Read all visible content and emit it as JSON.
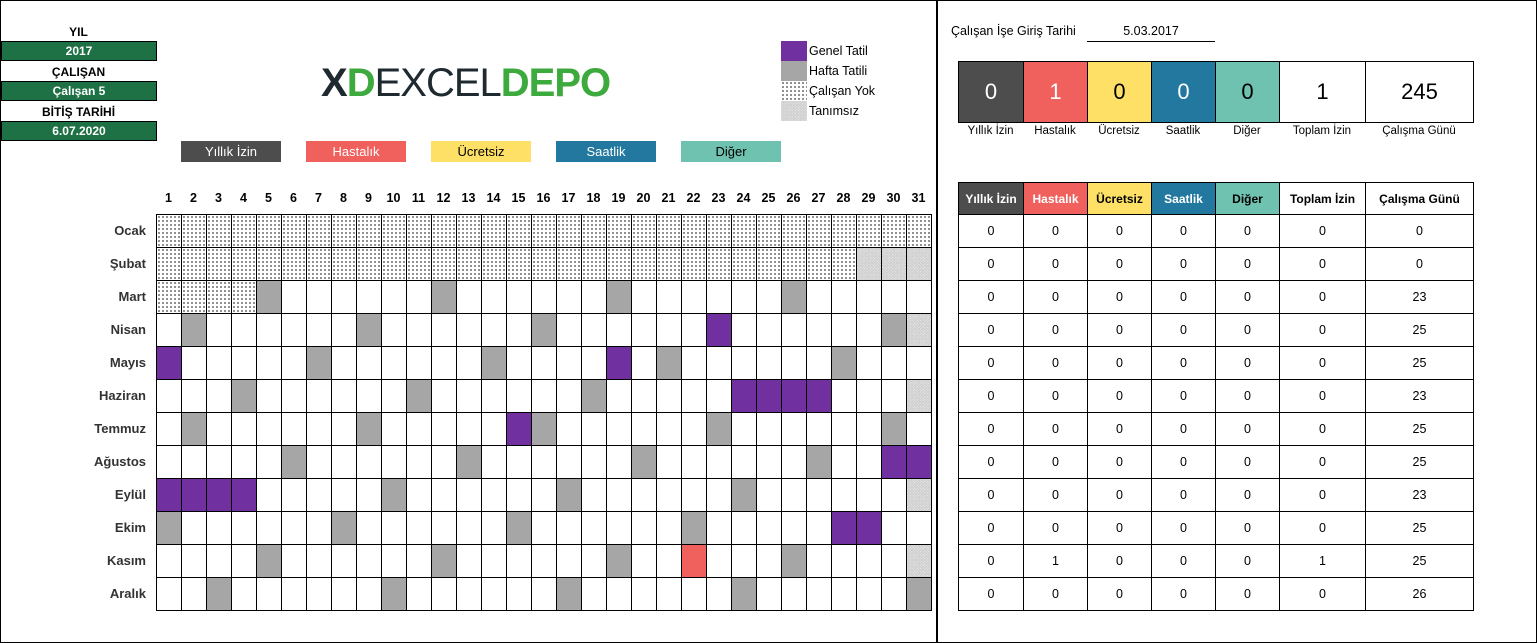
{
  "left_panel": {
    "year_label": "YIL",
    "year": "2017",
    "employee_label": "ÇALIŞAN",
    "employee": "Çalışan 5",
    "end_date_label": "BİTİŞ TARİHİ",
    "end_date": "6.07.2020"
  },
  "leave_buttons": [
    {
      "label": "Yıllık İzin",
      "color": "#4d4d4d",
      "text": "#fff"
    },
    {
      "label": "Hastalık",
      "color": "#f0605d",
      "text": "#fff"
    },
    {
      "label": "Ücretsiz",
      "color": "#ffe066",
      "text": "#000"
    },
    {
      "label": "Saatlik",
      "color": "#22789e",
      "text": "#fff"
    },
    {
      "label": "Diğer",
      "color": "#6fc1b0",
      "text": "#000"
    }
  ],
  "legend": [
    {
      "label": "Genel Tatil",
      "style": "c-h"
    },
    {
      "label": "Hafta Tatili",
      "style": "c-s"
    },
    {
      "label": "Çalışan Yok",
      "style": "dots"
    },
    {
      "label": "Tanımsız",
      "style": "hatch"
    }
  ],
  "calendar": {
    "cell_codes": {
      "w": "çalışma günü",
      "s": "Hafta Tatili",
      "h": "Genel Tatil",
      "n": "Çalışan Yok",
      "u": "Tanımsız",
      "r": "Hastalık"
    },
    "days": [
      "1",
      "2",
      "3",
      "4",
      "5",
      "6",
      "7",
      "8",
      "9",
      "10",
      "11",
      "12",
      "13",
      "14",
      "15",
      "16",
      "17",
      "18",
      "19",
      "20",
      "21",
      "22",
      "23",
      "24",
      "25",
      "26",
      "27",
      "28",
      "29",
      "30",
      "31"
    ],
    "months": [
      {
        "name": "Ocak",
        "cells": "nnnnnnnnnnnnnnnnnnnnnnnnnnnnnnn"
      },
      {
        "name": "Şubat",
        "cells": "nnnnnnnnnnnnnnnnnnnnnnnnnnnnuuu"
      },
      {
        "name": "Mart",
        "cells": "nnnnswwwwwwswwwwwwswwwwwwswwwww"
      },
      {
        "name": "Nisan",
        "cells": "wswwwwwwswwwwwwswwwwwwhwwwwwwsu"
      },
      {
        "name": "Mayıs",
        "cells": "hwwwwwswwwwwwswwwwhwswwwwwwswww"
      },
      {
        "name": "Haziran",
        "cells": "wwwswwwwwwswwwwwwswwwwwhhhhwwwu"
      },
      {
        "name": "Temmuz",
        "cells": "wswwwwwwswwwwwhswwwwwwswwwwwwsw"
      },
      {
        "name": "Ağustos",
        "cells": "wwwwwswwwwwwswwwwwwswwwwwwswwhh"
      },
      {
        "name": "Eylül",
        "cells": "hhhhwwwwwswwwwwwswwwwwwswwwwwwu"
      },
      {
        "name": "Ekim",
        "cells": "swwwwwwswwwwwwswwwwwwswwwwwhhww"
      },
      {
        "name": "Kasım",
        "cells": "wwwwswwwwwwswwwwwwswwrwwwswwwwu"
      },
      {
        "name": "Aralık",
        "cells": "wwswwwwwwswwwwwwswwwwwwswwwwwws"
      }
    ]
  },
  "hire_date": {
    "label": "Çalışan İşe Giriş Tarihi",
    "value": "5.03.2017"
  },
  "summary": [
    {
      "label": "Yıllık İzin",
      "value": "0",
      "color": "#4d4d4d",
      "text": "#fff"
    },
    {
      "label": "Hastalık",
      "value": "1",
      "color": "#f0605d",
      "text": "#fff"
    },
    {
      "label": "Ücretsiz",
      "value": "0",
      "color": "#ffe066",
      "text": "#000"
    },
    {
      "label": "Saatlik",
      "value": "0",
      "color": "#22789e",
      "text": "#fff"
    },
    {
      "label": "Diğer",
      "value": "0",
      "color": "#6fc1b0",
      "text": "#000"
    },
    {
      "label": "Toplam İzin",
      "value": "1",
      "color": "#ffffff",
      "text": "#000"
    },
    {
      "label": "Çalışma Günü",
      "value": "245",
      "color": "#ffffff",
      "text": "#000"
    }
  ],
  "monthly_table": {
    "headers": [
      "Yıllık İzin",
      "Hastalık",
      "Ücretsiz",
      "Saatlik",
      "Diğer",
      "Toplam İzin",
      "Çalışma Günü"
    ],
    "rows": [
      [
        "0",
        "0",
        "0",
        "0",
        "0",
        "0",
        "0"
      ],
      [
        "0",
        "0",
        "0",
        "0",
        "0",
        "0",
        "0"
      ],
      [
        "0",
        "0",
        "0",
        "0",
        "0",
        "0",
        "23"
      ],
      [
        "0",
        "0",
        "0",
        "0",
        "0",
        "0",
        "25"
      ],
      [
        "0",
        "0",
        "0",
        "0",
        "0",
        "0",
        "25"
      ],
      [
        "0",
        "0",
        "0",
        "0",
        "0",
        "0",
        "23"
      ],
      [
        "0",
        "0",
        "0",
        "0",
        "0",
        "0",
        "25"
      ],
      [
        "0",
        "0",
        "0",
        "0",
        "0",
        "0",
        "25"
      ],
      [
        "0",
        "0",
        "0",
        "0",
        "0",
        "0",
        "23"
      ],
      [
        "0",
        "0",
        "0",
        "0",
        "0",
        "0",
        "25"
      ],
      [
        "0",
        "1",
        "0",
        "0",
        "0",
        "1",
        "25"
      ],
      [
        "0",
        "0",
        "0",
        "0",
        "0",
        "0",
        "26"
      ]
    ]
  },
  "watermark": {
    "part1": "EXCEL",
    "part2": "DEPO",
    "mark": "X"
  }
}
